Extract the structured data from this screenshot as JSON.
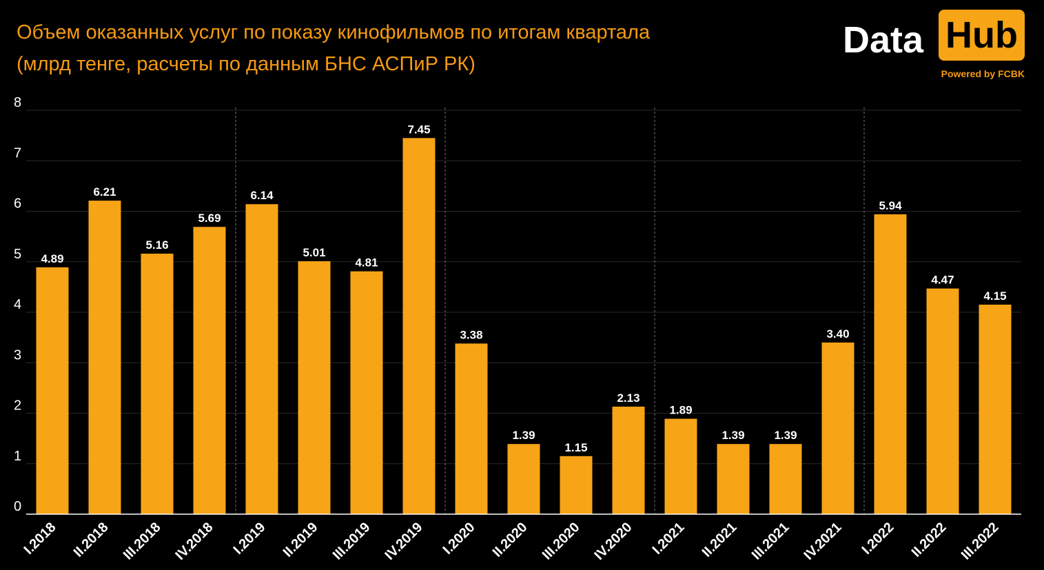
{
  "header": {
    "title_line1": "Объем оказанных услуг по показу кинофильмов по итогам квартала",
    "title_line2": "(млрд тенге, расчеты по данным БНС АСПиР РК)"
  },
  "logo": {
    "data_text": "Data",
    "hub_text": "Hub",
    "powered_text": "Powered by FCBK"
  },
  "colors": {
    "background": "#000000",
    "bar": "#F7A416",
    "title": "#F59A12",
    "grid": "#2a2a2a",
    "separator": "#777777"
  },
  "chart_data": {
    "type": "bar",
    "title": "Объем оказанных услуг по показу кинофильмов по итогам квартала",
    "subtitle": "(млрд тенге, расчеты по данным БНС АСПиР РК)",
    "xlabel": "",
    "ylabel": "",
    "ylim": [
      0,
      8
    ],
    "yticks": [
      0,
      1,
      2,
      3,
      4,
      5,
      6,
      7,
      8
    ],
    "grid": true,
    "year_separators_after": [
      3,
      7,
      11,
      15
    ],
    "categories": [
      "I.2018",
      "II.2018",
      "III.2018",
      "IV.2018",
      "I.2019",
      "II.2019",
      "III.2019",
      "IV.2019",
      "I.2020",
      "II.2020",
      "III.2020",
      "IV.2020",
      "I.2021",
      "II.2021",
      "III.2021",
      "IV.2021",
      "I.2022",
      "II.2022",
      "III.2022"
    ],
    "values": [
      4.89,
      6.21,
      5.16,
      5.69,
      6.14,
      5.01,
      4.81,
      7.45,
      3.38,
      1.39,
      1.15,
      2.13,
      1.89,
      1.39,
      1.39,
      3.4,
      5.94,
      4.47,
      4.15
    ],
    "labels": [
      "4.89",
      "6.21",
      "5.16",
      "5.69",
      "6.14",
      "5.01",
      "4.81",
      "7.45",
      "3.38",
      "1.39",
      "1.15",
      "2.13",
      "1.89",
      "1.39",
      "1.39",
      "3.40",
      "5.94",
      "4.47",
      "4.15"
    ]
  }
}
